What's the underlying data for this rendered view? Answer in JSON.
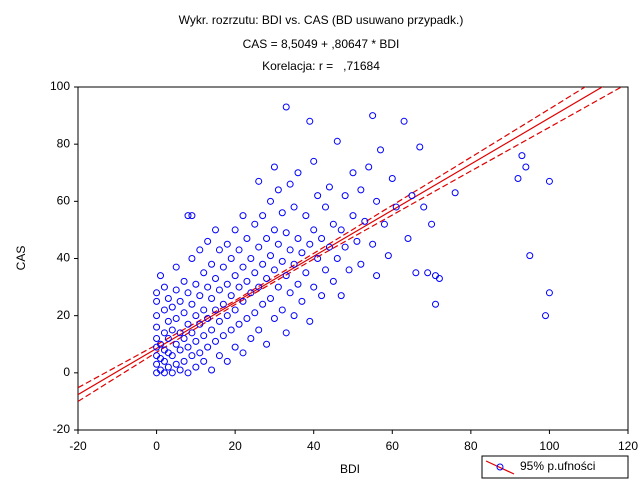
{
  "chart_data": {
    "type": "scatter",
    "title": "Wykr. rozrzutu: BDI vs. CAS (BD usuwano przypadk.)",
    "subtitle": [
      "CAS = 8,5049 + ,80647 * BDI",
      "Korelacja: r =   ,71684"
    ],
    "x_label": "BDI",
    "y_label": "CAS",
    "xlim": [
      -20,
      120
    ],
    "ylim": [
      -20,
      100
    ],
    "xticks": [
      -20,
      0,
      20,
      40,
      60,
      80,
      100,
      120
    ],
    "yticks": [
      -20,
      0,
      20,
      40,
      60,
      80,
      100
    ],
    "grid": false,
    "legend": "lower right",
    "series": [
      {
        "name": "95% p.ufności",
        "color": "#0000ff",
        "x": [
          0,
          0,
          0,
          0,
          0,
          0,
          0,
          0,
          0,
          1,
          1,
          1,
          1,
          2,
          2,
          2,
          2,
          2,
          2,
          3,
          3,
          3,
          3,
          3,
          4,
          4,
          4,
          4,
          5,
          5,
          5,
          5,
          5,
          6,
          6,
          6,
          6,
          7,
          7,
          7,
          7,
          8,
          8,
          8,
          8,
          8,
          9,
          9,
          9,
          9,
          9,
          10,
          10,
          10,
          10,
          11,
          11,
          11,
          11,
          12,
          12,
          12,
          12,
          13,
          13,
          13,
          13,
          14,
          14,
          14,
          14,
          15,
          15,
          15,
          15,
          16,
          16,
          16,
          16,
          17,
          17,
          17,
          18,
          18,
          18,
          18,
          19,
          19,
          19,
          20,
          20,
          20,
          20,
          21,
          21,
          21,
          22,
          22,
          22,
          22,
          23,
          23,
          23,
          24,
          24,
          24,
          25,
          25,
          25,
          26,
          26,
          26,
          26,
          27,
          27,
          27,
          28,
          28,
          28,
          29,
          29,
          29,
          30,
          30,
          30,
          30,
          31,
          31,
          31,
          32,
          32,
          32,
          33,
          33,
          33,
          33,
          34,
          34,
          34,
          35,
          35,
          35,
          36,
          36,
          36,
          37,
          37,
          38,
          38,
          39,
          39,
          39,
          40,
          40,
          40,
          41,
          41,
          42,
          42,
          43,
          43,
          44,
          44,
          45,
          45,
          46,
          46,
          47,
          47,
          48,
          48,
          49,
          50,
          50,
          51,
          52,
          52,
          53,
          54,
          55,
          55,
          56,
          56,
          57,
          58,
          59,
          60,
          61,
          63,
          64,
          65,
          66,
          67,
          68,
          69,
          70,
          71,
          71,
          72,
          76,
          92,
          93,
          94,
          95,
          99,
          100,
          100
        ],
        "values": [
          0,
          3,
          6,
          9,
          12,
          16,
          20,
          25,
          28,
          1,
          5,
          10,
          34,
          0,
          4,
          8,
          14,
          22,
          30,
          2,
          7,
          12,
          18,
          26,
          0,
          6,
          15,
          23,
          3,
          10,
          19,
          29,
          37,
          1,
          8,
          14,
          25,
          4,
          12,
          21,
          32,
          0,
          9,
          17,
          28,
          55,
          6,
          14,
          24,
          40,
          55,
          2,
          11,
          20,
          31,
          7,
          17,
          27,
          43,
          4,
          13,
          22,
          35,
          9,
          19,
          30,
          46,
          1,
          15,
          26,
          38,
          11,
          22,
          33,
          50,
          6,
          18,
          29,
          43,
          13,
          24,
          37,
          4,
          20,
          31,
          45,
          15,
          27,
          40,
          9,
          22,
          34,
          50,
          17,
          30,
          43,
          7,
          25,
          37,
          55,
          19,
          32,
          47,
          12,
          28,
          40,
          21,
          35,
          52,
          15,
          30,
          44,
          67,
          24,
          38,
          55,
          10,
          33,
          47,
          26,
          41,
          60,
          19,
          36,
          50,
          72,
          30,
          45,
          64,
          22,
          39,
          56,
          14,
          34,
          49,
          93,
          28,
          43,
          66,
          20,
          38,
          58,
          31,
          47,
          70,
          25,
          42,
          35,
          55,
          18,
          45,
          88,
          30,
          50,
          74,
          40,
          62,
          27,
          47,
          36,
          58,
          44,
          65,
          32,
          52,
          40,
          81,
          27,
          50,
          44,
          62,
          36,
          55,
          70,
          46,
          38,
          64,
          53,
          72,
          45,
          90,
          34,
          60,
          78,
          52,
          41,
          68,
          58,
          88,
          47,
          62,
          35,
          79,
          58,
          35,
          52,
          24,
          34,
          33,
          63,
          68,
          76,
          72,
          41,
          20,
          28,
          67
        ]
      }
    ],
    "lines": [
      {
        "color": "#e00000",
        "dashed": false,
        "x": [
          -20,
          120
        ],
        "values": [
          -7.6,
          105.3
        ]
      },
      {
        "color": "#e00000",
        "dashed": true,
        "x": [
          -20,
          0,
          20,
          40,
          60,
          80,
          100,
          120
        ],
        "values": [
          -5.2,
          9.8,
          25.3,
          41.8,
          58.6,
          75.4,
          92.3,
          109.3
        ]
      },
      {
        "color": "#e00000",
        "dashed": true,
        "x": [
          -20,
          0,
          20,
          40,
          60,
          80,
          100,
          120
        ],
        "values": [
          -10.0,
          7.2,
          23.9,
          39.8,
          55.2,
          70.6,
          85.9,
          101.3
        ]
      }
    ]
  }
}
